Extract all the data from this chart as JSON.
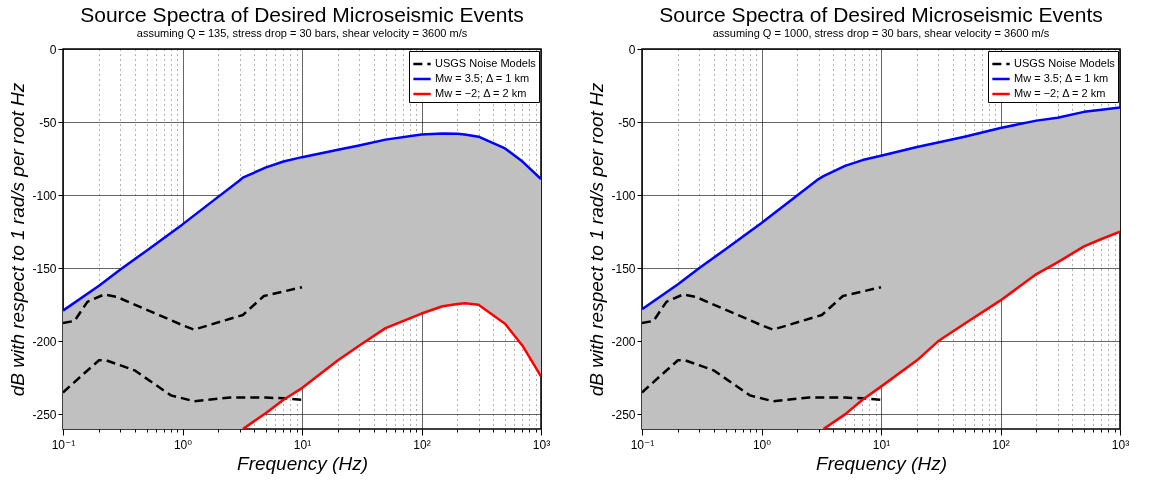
{
  "chart_data": [
    {
      "type": "line",
      "title": "Source Spectra of Desired Microseismic Events",
      "subtitle": "assuming Q = 135, stress drop = 30 bars, shear velocity = 3600 m/s",
      "xlabel": "Frequency (Hz)",
      "ylabel": "dB with respect to 1 rad/s per root Hz",
      "log": "x",
      "grid": true,
      "legend": "top right",
      "xlim": [
        0.1,
        1000
      ],
      "ylim": [
        -260,
        0
      ],
      "xticks": [
        {
          "value": 0.1,
          "label": "10⁻¹"
        },
        {
          "value": 0.2,
          "label": null
        },
        {
          "value": 0.3,
          "label": null
        },
        {
          "value": 0.4,
          "label": null
        },
        {
          "value": 0.5,
          "label": null
        },
        {
          "value": 0.6,
          "label": null
        },
        {
          "value": 0.7,
          "label": null
        },
        {
          "value": 0.8,
          "label": null
        },
        {
          "value": 0.9,
          "label": null
        },
        {
          "value": 1,
          "label": "10⁰"
        },
        {
          "value": 2,
          "label": null
        },
        {
          "value": 3,
          "label": null
        },
        {
          "value": 4,
          "label": null
        },
        {
          "value": 5,
          "label": null
        },
        {
          "value": 6,
          "label": null
        },
        {
          "value": 7,
          "label": null
        },
        {
          "value": 8,
          "label": null
        },
        {
          "value": 9,
          "label": null
        },
        {
          "value": 10,
          "label": "10¹"
        },
        {
          "value": 20,
          "label": null
        },
        {
          "value": 30,
          "label": null
        },
        {
          "value": 40,
          "label": null
        },
        {
          "value": 50,
          "label": null
        },
        {
          "value": 60,
          "label": null
        },
        {
          "value": 70,
          "label": null
        },
        {
          "value": 80,
          "label": null
        },
        {
          "value": 90,
          "label": null
        },
        {
          "value": 100,
          "label": "10²"
        },
        {
          "value": 200,
          "label": null
        },
        {
          "value": 300,
          "label": null
        },
        {
          "value": 400,
          "label": null
        },
        {
          "value": 500,
          "label": null
        },
        {
          "value": 600,
          "label": null
        },
        {
          "value": 700,
          "label": null
        },
        {
          "value": 800,
          "label": null
        },
        {
          "value": 900,
          "label": null
        },
        {
          "value": 1000,
          "label": "10³"
        }
      ],
      "yticks": [
        0,
        -50,
        -100,
        -150,
        -200,
        -250
      ],
      "series": [
        {
          "name": "USGS Noise Models",
          "color": "#000000",
          "line_style": "dashed",
          "x": [
            0.1,
            0.125,
            0.16,
            0.22,
            0.28,
            1.0,
            1.25,
            3.2,
            4.8,
            10
          ],
          "values": [
            -187.5,
            -186,
            -173,
            -168,
            -169.5,
            -189,
            -192,
            -182,
            -169,
            -163
          ]
        },
        {
          "color": "#000000",
          "line_style": "dashed",
          "x": [
            0.1,
            0.15,
            0.2,
            0.23,
            0.4,
            0.8,
            1.25,
            2.5,
            5,
            7,
            10
          ],
          "values": [
            -235,
            -222,
            -213,
            -213,
            -220,
            -237,
            -241,
            -238.5,
            -238.5,
            -239,
            -240
          ]
        },
        {
          "name": "Mw = 3.5; Δ = 1 km",
          "color": "#0000ff",
          "line_style": "solid",
          "x": [
            0.1,
            0.2,
            0.3,
            0.5,
            1,
            2,
            3,
            3.2,
            5,
            7,
            10,
            20,
            30,
            50,
            100,
            150,
            200,
            230,
            300,
            500,
            700,
            1000
          ],
          "values": [
            -179,
            -162,
            -151,
            -138,
            -120,
            -101,
            -90,
            -88,
            -81,
            -77,
            -74,
            -69,
            -66,
            -62,
            -58.5,
            -57.8,
            -58,
            -58.5,
            -60,
            -68,
            -77,
            -89
          ],
          "upper": [
            -179,
            -162,
            -151,
            -138,
            -120,
            -101,
            -90,
            -88,
            -81,
            -77,
            -74,
            -69,
            -66,
            -62,
            -58.5,
            -57.8,
            -58,
            -58.5,
            -60,
            -68,
            -77,
            -89
          ],
          "lower": [
            -260,
            -260,
            -260,
            -260,
            -260,
            -260,
            -260,
            -260,
            -249,
            -240,
            -232,
            -213,
            -203,
            -191,
            -181,
            -176,
            -174.5,
            -174,
            -175,
            -188,
            -203,
            -224
          ]
        },
        {
          "name": "Mw = −2; Δ = 2 km",
          "color": "#ff0000",
          "line_style": "solid",
          "x": [
            3.2,
            5,
            7,
            10,
            20,
            30,
            50,
            100,
            150,
            200,
            230,
            300,
            500,
            700,
            1000
          ],
          "values": [
            -260,
            -249,
            -240,
            -232,
            -213,
            -203,
            -191,
            -181,
            -176,
            -174.5,
            -174,
            -175,
            -188,
            -203,
            -224
          ]
        }
      ]
    },
    {
      "type": "line",
      "title": "Source Spectra of Desired Microseismic Events",
      "subtitle": "assuming Q = 1000, stress drop = 30 bars, shear velocity = 3600 m/s",
      "xlabel": "Frequency (Hz)",
      "ylabel": "dB with respect to 1 rad/s per root Hz",
      "log": "x",
      "grid": true,
      "legend": "top right",
      "xlim": [
        0.1,
        1000
      ],
      "ylim": [
        -260,
        0
      ],
      "xticks": [
        {
          "value": 0.1,
          "label": "10⁻¹"
        },
        {
          "value": 0.2,
          "label": null
        },
        {
          "value": 0.3,
          "label": null
        },
        {
          "value": 0.4,
          "label": null
        },
        {
          "value": 0.5,
          "label": null
        },
        {
          "value": 0.6,
          "label": null
        },
        {
          "value": 0.7,
          "label": null
        },
        {
          "value": 0.8,
          "label": null
        },
        {
          "value": 0.9,
          "label": null
        },
        {
          "value": 1,
          "label": "10⁰"
        },
        {
          "value": 2,
          "label": null
        },
        {
          "value": 3,
          "label": null
        },
        {
          "value": 4,
          "label": null
        },
        {
          "value": 5,
          "label": null
        },
        {
          "value": 6,
          "label": null
        },
        {
          "value": 7,
          "label": null
        },
        {
          "value": 8,
          "label": null
        },
        {
          "value": 9,
          "label": null
        },
        {
          "value": 10,
          "label": "10¹"
        },
        {
          "value": 20,
          "label": null
        },
        {
          "value": 30,
          "label": null
        },
        {
          "value": 40,
          "label": null
        },
        {
          "value": 50,
          "label": null
        },
        {
          "value": 60,
          "label": null
        },
        {
          "value": 70,
          "label": null
        },
        {
          "value": 80,
          "label": null
        },
        {
          "value": 90,
          "label": null
        },
        {
          "value": 100,
          "label": "10²"
        },
        {
          "value": 200,
          "label": null
        },
        {
          "value": 300,
          "label": null
        },
        {
          "value": 400,
          "label": null
        },
        {
          "value": 500,
          "label": null
        },
        {
          "value": 600,
          "label": null
        },
        {
          "value": 700,
          "label": null
        },
        {
          "value": 800,
          "label": null
        },
        {
          "value": 900,
          "label": null
        },
        {
          "value": 1000,
          "label": "10³"
        }
      ],
      "yticks": [
        0,
        -50,
        -100,
        -150,
        -200,
        -250
      ],
      "series": [
        {
          "name": "USGS Noise Models",
          "color": "#000000",
          "line_style": "dashed",
          "x": [
            0.1,
            0.125,
            0.16,
            0.22,
            0.28,
            1.0,
            1.25,
            3.2,
            4.8,
            10
          ],
          "values": [
            -187.5,
            -186,
            -173,
            -168,
            -169.5,
            -189,
            -192,
            -182,
            -169,
            -163
          ]
        },
        {
          "color": "#000000",
          "line_style": "dashed",
          "x": [
            0.1,
            0.15,
            0.2,
            0.23,
            0.4,
            0.8,
            1.25,
            2.5,
            5,
            7,
            10
          ],
          "values": [
            -235,
            -222,
            -213,
            -213,
            -220,
            -237,
            -241,
            -238.5,
            -238.5,
            -239,
            -240
          ]
        },
        {
          "name": "Mw = 3.5; Δ = 1 km",
          "color": "#0000ff",
          "line_style": "solid",
          "x": [
            0.1,
            0.2,
            0.3,
            0.5,
            1,
            2,
            3,
            3.3,
            5,
            7,
            10,
            20,
            30,
            50,
            100,
            200,
            300,
            500,
            700,
            1000
          ],
          "values": [
            -178,
            -161,
            -150,
            -137,
            -119,
            -100,
            -89,
            -87,
            -80,
            -76,
            -73,
            -67,
            -64,
            -60,
            -54,
            -49,
            -47,
            -43,
            -41.5,
            -40
          ],
          "upper": [
            -178,
            -161,
            -150,
            -137,
            -119,
            -100,
            -89,
            -87,
            -80,
            -76,
            -73,
            -67,
            -64,
            -60,
            -54,
            -49,
            -47,
            -43,
            -41.5,
            -40
          ],
          "lower": [
            -260,
            -260,
            -260,
            -260,
            -260,
            -260,
            -260,
            -260,
            -250,
            -240,
            -231,
            -213,
            -200,
            -188,
            -172,
            -154,
            -146,
            -135,
            -130,
            -125
          ]
        },
        {
          "name": "Mw = −2; Δ = 2 km",
          "color": "#ff0000",
          "line_style": "solid",
          "x": [
            3.3,
            5,
            7,
            10,
            20,
            30,
            50,
            100,
            200,
            300,
            500,
            700,
            1000
          ],
          "values": [
            -260,
            -250,
            -240,
            -231,
            -213,
            -200,
            -188,
            -172,
            -154,
            -146,
            -135,
            -130,
            -125
          ]
        }
      ]
    }
  ]
}
